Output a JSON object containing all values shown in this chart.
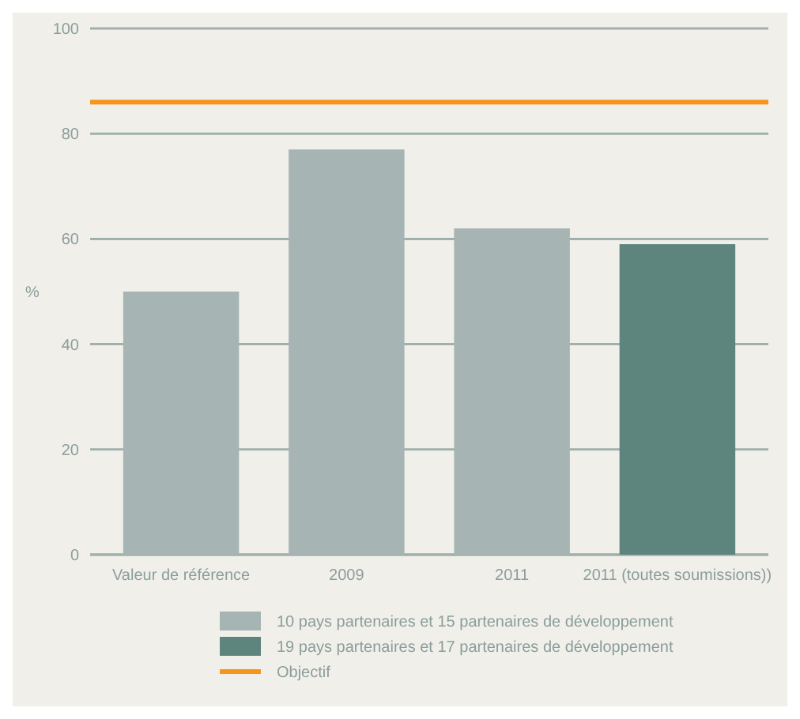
{
  "chart_data": {
    "type": "bar",
    "ylabel": "%",
    "categories": [
      "Valeur de référence",
      "2009",
      "2011",
      "2011 (toutes soumissions))"
    ],
    "series": [
      {
        "name": "10 pays partenaires et 15 partenaires de développement",
        "color": "#a6b5b4",
        "values": [
          50,
          77,
          62,
          null
        ]
      },
      {
        "name": "19 pays partenaires et 17 partenaires de développement",
        "color": "#5e847e",
        "values": [
          null,
          null,
          null,
          59
        ]
      }
    ],
    "ylim": [
      0,
      100
    ],
    "yticks": [
      0,
      20,
      40,
      60,
      80,
      100
    ],
    "grid": "y",
    "legend": "bottom",
    "ref_lines": [
      {
        "axis": "y",
        "value": 86,
        "label": "Objectif",
        "color": "#f7941d"
      }
    ]
  }
}
